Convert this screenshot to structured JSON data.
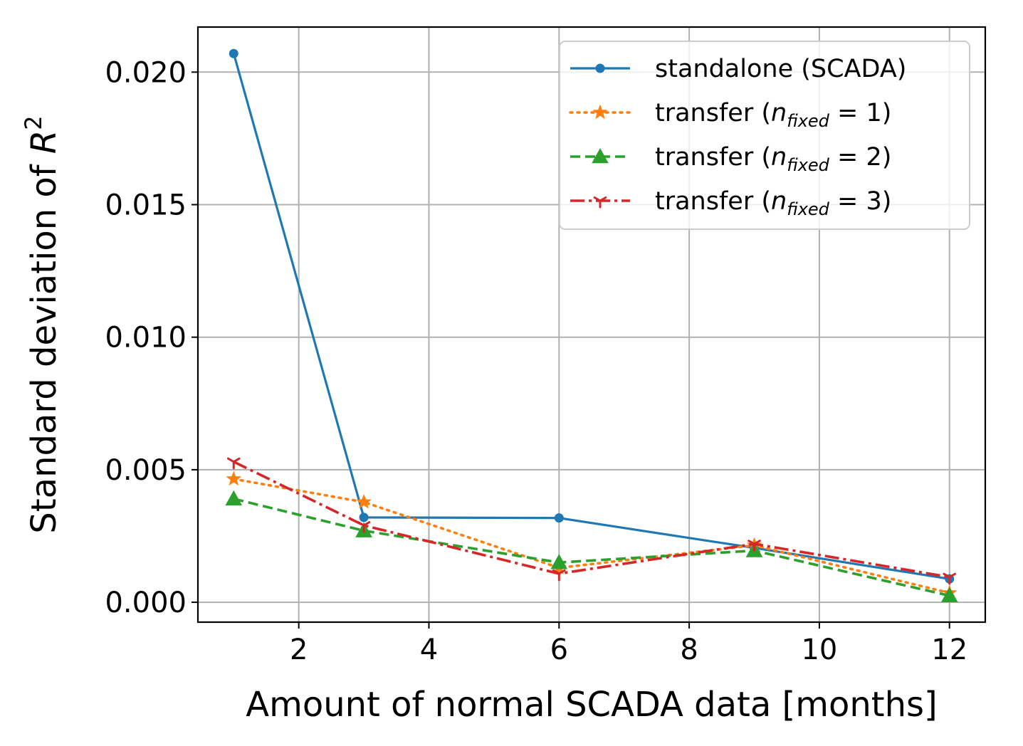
{
  "chart_data": {
    "type": "line",
    "title": "",
    "xlabel": "Amount of normal SCADA data [months]",
    "ylabel": "Standard deviation of R²",
    "ylabel_parts": {
      "base": "Standard deviation of ",
      "var": "R",
      "sup": "2"
    },
    "x": [
      1,
      3,
      6,
      9,
      12
    ],
    "xlim": [
      0.45,
      12.55
    ],
    "ylim": [
      -0.00075,
      0.0217
    ],
    "xticks": [
      2,
      4,
      6,
      8,
      10,
      12
    ],
    "xtick_labels": [
      "2",
      "4",
      "6",
      "8",
      "10",
      "12"
    ],
    "yticks": [
      0.0,
      0.005,
      0.01,
      0.015,
      0.02
    ],
    "ytick_labels": [
      "0.000",
      "0.005",
      "0.010",
      "0.015",
      "0.020"
    ],
    "grid": true,
    "legend_position": "top-right",
    "series": [
      {
        "name": "standalone (SCADA)",
        "legend": {
          "pre": "standalone (SCADA)",
          "n": "",
          "sub": "",
          "post": ""
        },
        "color": "#1f77b4",
        "dash": "",
        "marker": "point",
        "line_width": 3.2,
        "values": [
          0.0207,
          0.0032,
          0.00318,
          0.00205,
          0.00088
        ]
      },
      {
        "name": "transfer (n_fixed = 1)",
        "legend": {
          "pre": "transfer (",
          "n": "n",
          "sub": "fixed",
          "post": " = 1)"
        },
        "color": "#ff7f0e",
        "dash": "3,7",
        "marker": "star",
        "line_width": 3.6,
        "values": [
          0.00465,
          0.00378,
          0.0013,
          0.00215,
          0.00035
        ]
      },
      {
        "name": "transfer (n_fixed = 2)",
        "legend": {
          "pre": "transfer (",
          "n": "n",
          "sub": "fixed",
          "post": " = 2)"
        },
        "color": "#2ca02c",
        "dash": "14,7",
        "marker": "triangle",
        "line_width": 3.6,
        "values": [
          0.0039,
          0.0027,
          0.0015,
          0.00195,
          0.00025
        ]
      },
      {
        "name": "transfer (n_fixed = 3)",
        "legend": {
          "pre": "transfer (",
          "n": "n",
          "sub": "fixed",
          "post": " = 3)"
        },
        "color": "#d62728",
        "dash": "20,6,4,6",
        "marker": "tri-down",
        "line_width": 3.6,
        "values": [
          0.0053,
          0.0029,
          0.00108,
          0.0022,
          0.00095
        ]
      }
    ]
  }
}
